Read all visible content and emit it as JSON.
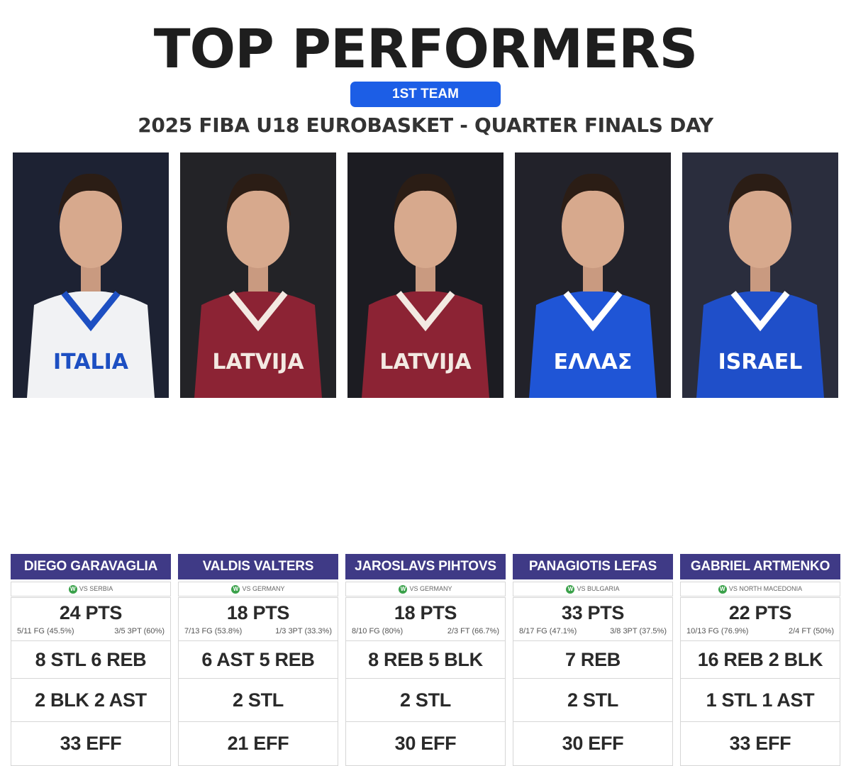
{
  "header": {
    "title": "TOP PERFORMERS",
    "badge": "1ST TEAM",
    "subtitle": "2025 FIBA U18 EUROBASKET - QUARTER FINALS DAY"
  },
  "colors": {
    "badge": "#1c5ee6",
    "name_bar": "#3f3a86",
    "win_dot": "#3aa14a"
  },
  "players": [
    {
      "name": "DIEGO GARAVAGLIA",
      "result_icon": "W",
      "opponent": "VS SERBIA",
      "points": "24 PTS",
      "shot_left": "5/11 FG (45.5%)",
      "shot_right": "3/5 3PT (60%)",
      "line2": "8 STL 6 REB",
      "line3": "2 BLK 2 AST",
      "line4": "33 EFF",
      "jersey_text": "ITALIA",
      "jersey_color": "#f1f2f4",
      "trim_color": "#1d4fc2"
    },
    {
      "name": "VALDIS VALTERS",
      "result_icon": "W",
      "opponent": "VS GERMANY",
      "points": "18 PTS",
      "shot_left": "7/13 FG (53.8%)",
      "shot_right": "1/3 3PT (33.3%)",
      "line2": "6 AST 5 REB",
      "line3": "2 STL",
      "line4": "21 EFF",
      "jersey_text": "LATVIJA",
      "jersey_color": "#8c2334",
      "trim_color": "#f3e9e2"
    },
    {
      "name": "JAROSLAVS PIHTOVS",
      "result_icon": "W",
      "opponent": "VS GERMANY",
      "points": "18 PTS",
      "shot_left": "8/10 FG (80%)",
      "shot_right": "2/3 FT (66.7%)",
      "line2": "8 REB 5 BLK",
      "line3": "2 STL",
      "line4": "30 EFF",
      "jersey_text": "LATVIJA",
      "jersey_color": "#8c2334",
      "trim_color": "#f3e9e2"
    },
    {
      "name": "PANAGIOTIS LEFAS",
      "result_icon": "W",
      "opponent": "VS BULGARIA",
      "points": "33 PTS",
      "shot_left": "8/17 FG (47.1%)",
      "shot_right": "3/8 3PT (37.5%)",
      "line2": "7 REB",
      "line3": "2 STL",
      "line4": "30 EFF",
      "jersey_text": "ΕΛΛΑΣ",
      "jersey_color": "#1f55d6",
      "trim_color": "#ffffff"
    },
    {
      "name": "GABRIEL ARTMENKO",
      "result_icon": "W",
      "opponent": "VS NORTH MACEDONIA",
      "points": "22 PTS",
      "shot_left": "10/13 FG (76.9%)",
      "shot_right": "2/4 FT (50%)",
      "line2": "16 REB 2 BLK",
      "line3": "1 STL 1 AST",
      "line4": "33 EFF",
      "jersey_text": "ISRAEL",
      "jersey_color": "#1f4fc9",
      "trim_color": "#ffffff"
    }
  ]
}
